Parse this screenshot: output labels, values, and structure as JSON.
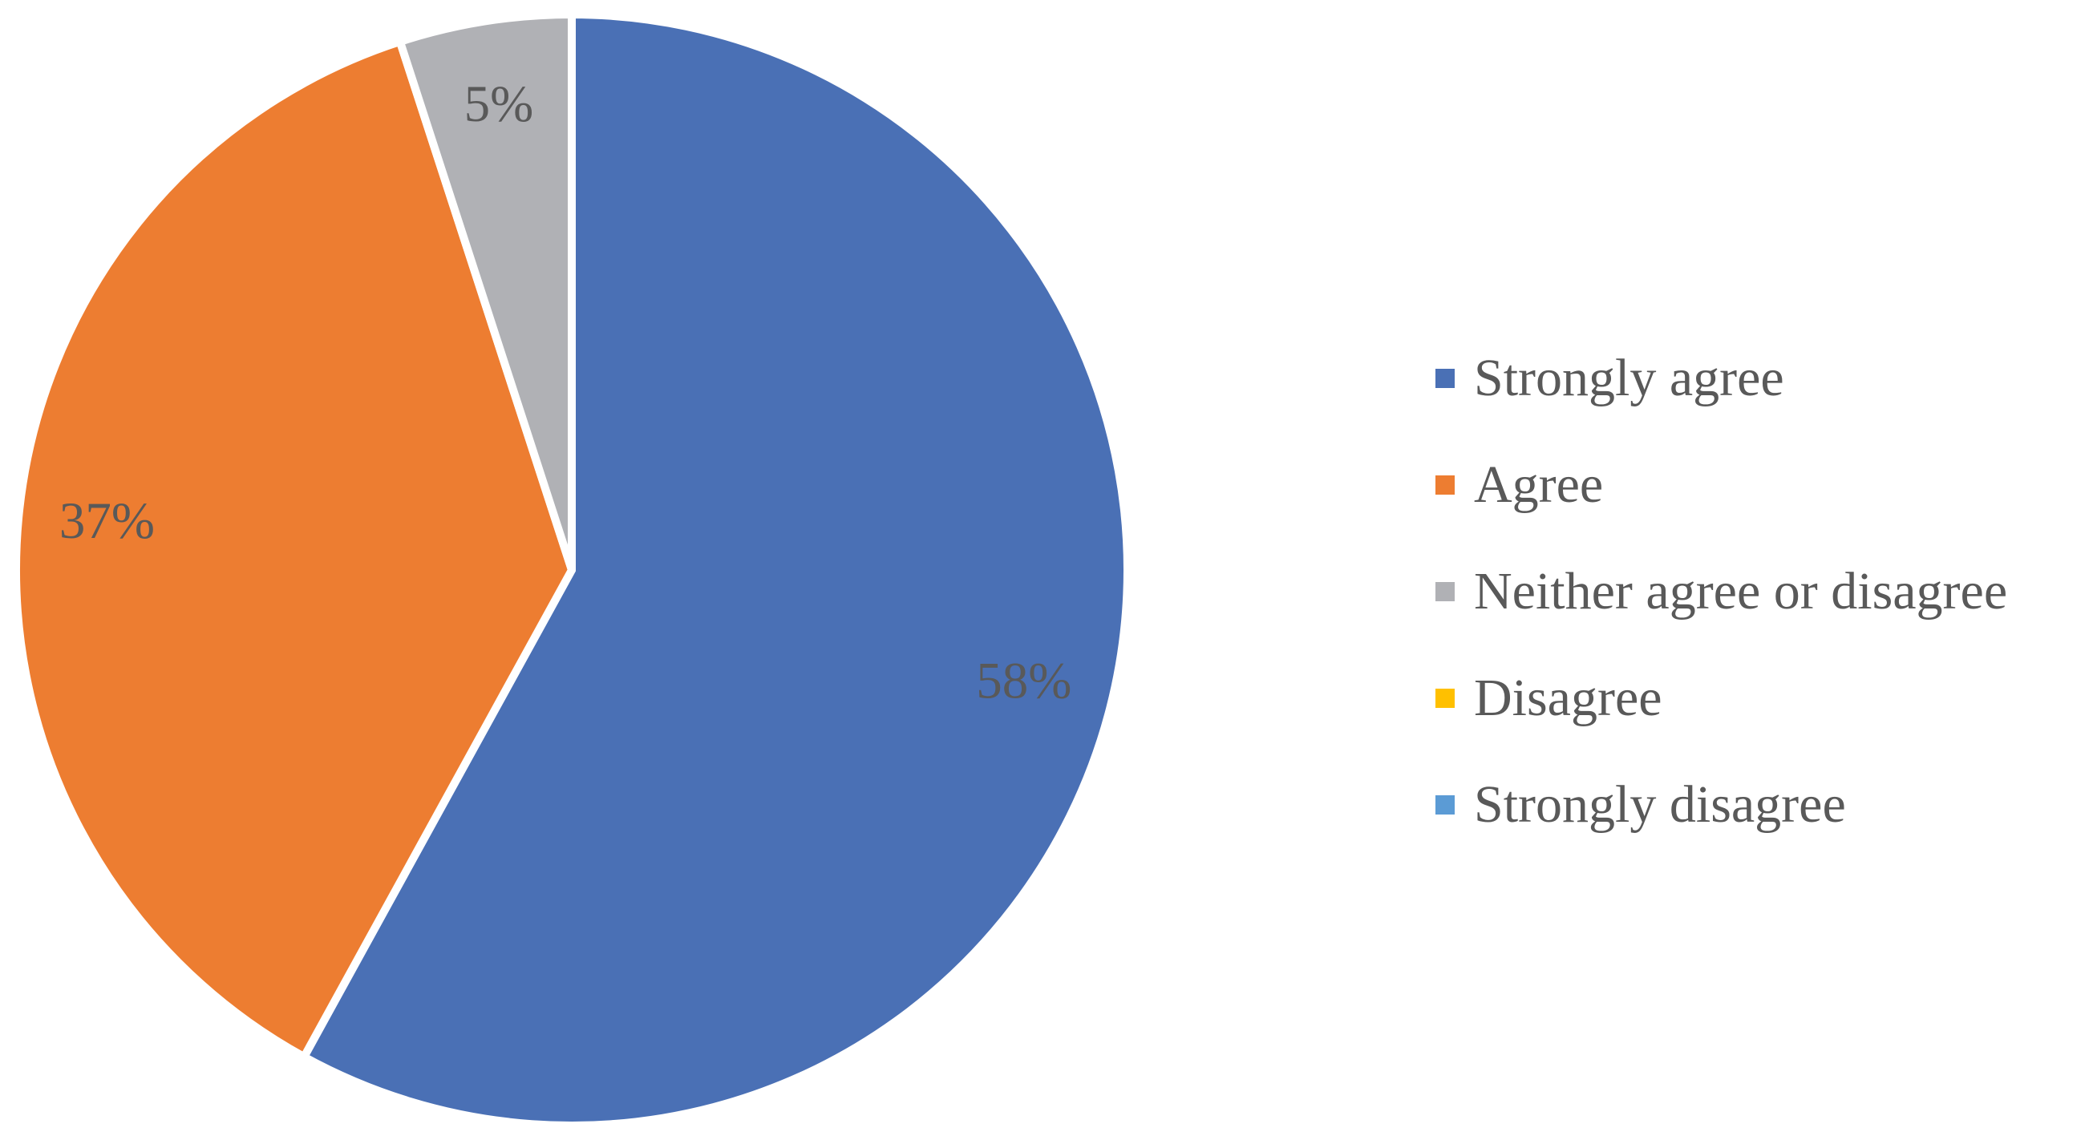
{
  "chart_data": {
    "type": "pie",
    "title": "",
    "categories": [
      "Strongly agree",
      "Agree",
      "Neither agree or disagree",
      "Disagree",
      "Strongly disagree"
    ],
    "values": [
      58,
      37,
      5,
      0,
      0
    ],
    "data_labels": [
      "58%",
      "37%",
      "5%",
      "",
      ""
    ],
    "colors": [
      "#4A70B5",
      "#ED7D31",
      "#B0B1B5",
      "#FFC000",
      "#5B9BD5"
    ],
    "start_angle_deg": 0,
    "direction": "clockwise",
    "legend_position": "right",
    "label_color": "#595959"
  }
}
